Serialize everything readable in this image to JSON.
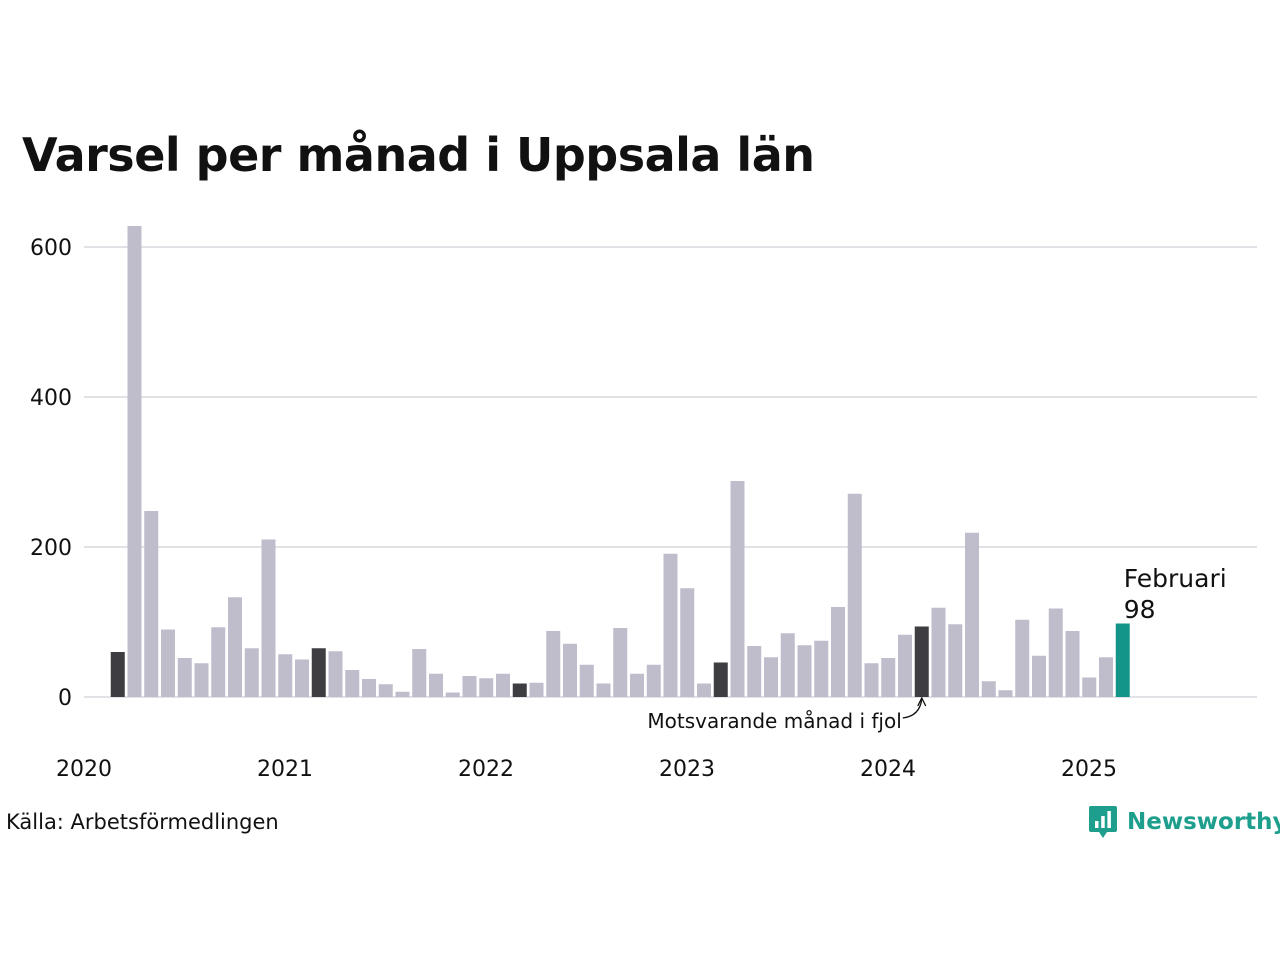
{
  "title": "Varsel per månad i Uppsala län",
  "source": "Källa: Arbetsförmedlingen",
  "brand": "Newsworthy",
  "colors": {
    "bar_default": "#bfbdcc",
    "bar_same_month": "#3e3e42",
    "bar_current": "#14958a",
    "grid": "#e1e1e6",
    "brand": "#1e9e8c"
  },
  "chart_data": {
    "type": "bar",
    "title": "Varsel per månad i Uppsala län",
    "xlabel": "",
    "ylabel": "",
    "ylim": [
      0,
      600
    ],
    "yticks": [
      0,
      200,
      400,
      600
    ],
    "grid": true,
    "x_tick_labels": [
      "2020",
      "2021",
      "2022",
      "2023",
      "2024",
      "2025"
    ],
    "x_range": [
      "2020-01",
      "2025-12"
    ],
    "months": [
      "2020-02",
      "2020-03",
      "2020-04",
      "2020-05",
      "2020-06",
      "2020-07",
      "2020-08",
      "2020-09",
      "2020-10",
      "2020-11",
      "2020-12",
      "2021-01",
      "2021-02",
      "2021-03",
      "2021-04",
      "2021-05",
      "2021-06",
      "2021-07",
      "2021-08",
      "2021-09",
      "2021-10",
      "2021-11",
      "2021-12",
      "2022-01",
      "2022-02",
      "2022-03",
      "2022-04",
      "2022-05",
      "2022-06",
      "2022-07",
      "2022-08",
      "2022-09",
      "2022-10",
      "2022-11",
      "2022-12",
      "2023-01",
      "2023-02",
      "2023-03",
      "2023-04",
      "2023-05",
      "2023-06",
      "2023-07",
      "2023-08",
      "2023-09",
      "2023-10",
      "2023-11",
      "2023-12",
      "2024-01",
      "2024-02",
      "2024-03",
      "2024-04",
      "2024-05",
      "2024-06",
      "2024-07",
      "2024-08",
      "2024-09",
      "2024-10",
      "2024-11",
      "2024-12",
      "2025-01",
      "2025-02"
    ],
    "values": [
      60,
      628,
      248,
      90,
      52,
      45,
      93,
      133,
      65,
      210,
      57,
      50,
      65,
      61,
      36,
      24,
      17,
      7,
      64,
      31,
      6,
      28,
      25,
      31,
      18,
      19,
      88,
      71,
      43,
      18,
      92,
      31,
      43,
      191,
      145,
      18,
      46,
      288,
      68,
      53,
      85,
      69,
      75,
      120,
      271,
      45,
      52,
      83,
      94,
      119,
      97,
      219,
      21,
      9,
      103,
      55,
      118,
      88,
      26,
      53,
      98
    ],
    "same_month_previous_years": [
      "2020-02",
      "2021-02",
      "2022-02",
      "2023-02",
      "2024-02"
    ],
    "current_month": "2025-02",
    "annotations": {
      "current_label": "Februari",
      "current_value": "98",
      "same_month_label": "Motsvarande månad i fjol"
    }
  }
}
